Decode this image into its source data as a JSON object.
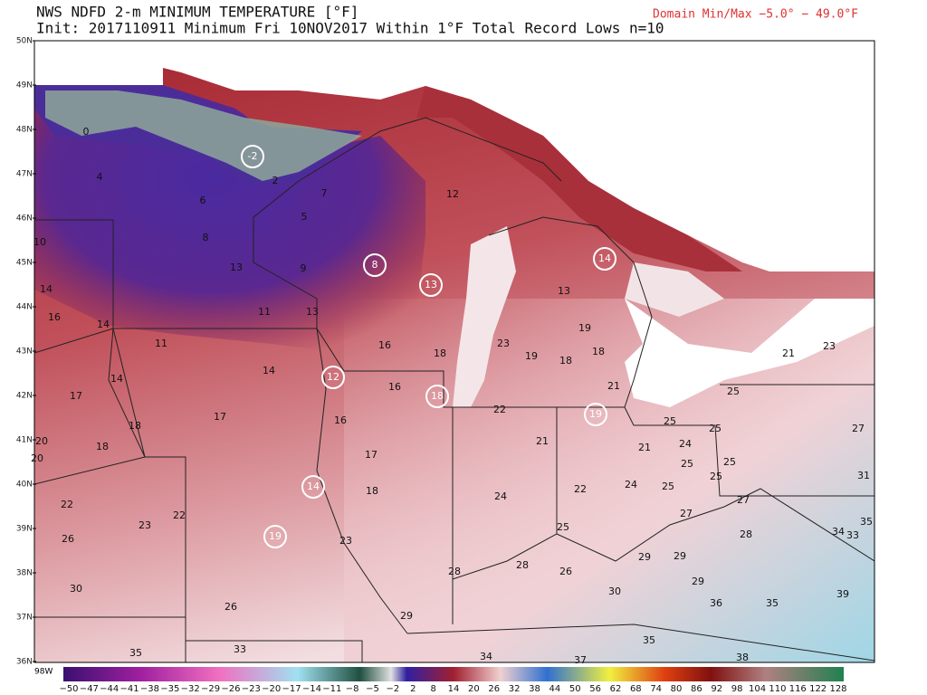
{
  "header": {
    "title": "NWS NDFD 2-m MINIMUM TEMPERATURE [°F]",
    "subtitle": "Init: 2017110911 Minimum Fri 10NOV2017  Within 1°F   Total Record Lows n=10",
    "domain_minmax": "Domain Min/Max −5.0° − 49.0°F"
  },
  "lat_labels": [
    "50N",
    "49N",
    "48N",
    "47N",
    "46N",
    "45N",
    "44N",
    "43N",
    "42N",
    "41N",
    "40N",
    "39N",
    "38N",
    "37N",
    "36N"
  ],
  "lon_label": "98W",
  "colorbar_labels": [
    "−50",
    "−47",
    "−44",
    "−41",
    "−38",
    "−35",
    "−32",
    "−29",
    "−26",
    "−23",
    "−20",
    "−17",
    "−14",
    "−11",
    "−8",
    "−5",
    "−2",
    "2",
    "8",
    "14",
    "20",
    "26",
    "32",
    "38",
    "44",
    "50",
    "56",
    "62",
    "68",
    "74",
    "80",
    "86",
    "92",
    "98",
    "104",
    "110",
    "116",
    "122",
    "128"
  ],
  "stations": [
    {
      "value": 0
    },
    {
      "value": 4
    },
    {
      "value": -2,
      "record": true
    },
    {
      "value": 2
    },
    {
      "value": 7
    },
    {
      "value": 6
    },
    {
      "value": 5
    },
    {
      "value": 12
    },
    {
      "value": 10
    },
    {
      "value": 8
    },
    {
      "value": 13
    },
    {
      "value": 9
    },
    {
      "value": 8,
      "record": true
    },
    {
      "value": 13,
      "record": true
    },
    {
      "value": 14,
      "record": true
    },
    {
      "value": 13
    },
    {
      "value": 14
    },
    {
      "value": 16
    },
    {
      "value": 14
    },
    {
      "value": 11
    },
    {
      "value": 13
    },
    {
      "value": 19
    },
    {
      "value": 11
    },
    {
      "value": 16
    },
    {
      "value": 18
    },
    {
      "value": 23
    },
    {
      "value": 19
    },
    {
      "value": 18
    },
    {
      "value": 18
    },
    {
      "value": 21
    },
    {
      "value": 23
    },
    {
      "value": 14
    },
    {
      "value": 14
    },
    {
      "value": 12,
      "record": true
    },
    {
      "value": 16
    },
    {
      "value": 18,
      "record": true
    },
    {
      "value": 21
    },
    {
      "value": 25
    },
    {
      "value": 17
    },
    {
      "value": 22
    },
    {
      "value": 19,
      "record": true
    },
    {
      "value": 17
    },
    {
      "value": 16
    },
    {
      "value": 25
    },
    {
      "value": 25
    },
    {
      "value": 27
    },
    {
      "value": 18
    },
    {
      "value": 20
    },
    {
      "value": 21
    },
    {
      "value": 21
    },
    {
      "value": 24
    },
    {
      "value": 20
    },
    {
      "value": 18
    },
    {
      "value": 17
    },
    {
      "value": 25
    },
    {
      "value": 25
    },
    {
      "value": 25
    },
    {
      "value": 31
    },
    {
      "value": 14,
      "record": true
    },
    {
      "value": 18
    },
    {
      "value": 22
    },
    {
      "value": 24
    },
    {
      "value": 25
    },
    {
      "value": 24
    },
    {
      "value": 27
    },
    {
      "value": 22
    },
    {
      "value": 22
    },
    {
      "value": 27
    },
    {
      "value": 23
    },
    {
      "value": 25
    },
    {
      "value": 34
    },
    {
      "value": 35
    },
    {
      "value": 33
    },
    {
      "value": 26
    },
    {
      "value": 19,
      "record": true
    },
    {
      "value": 23
    },
    {
      "value": 28
    },
    {
      "value": 29
    },
    {
      "value": 29
    },
    {
      "value": 28
    },
    {
      "value": 28
    },
    {
      "value": 26
    },
    {
      "value": 29
    },
    {
      "value": 30
    },
    {
      "value": 30
    },
    {
      "value": 36
    },
    {
      "value": 35
    },
    {
      "value": 39
    },
    {
      "value": 26
    },
    {
      "value": 29
    },
    {
      "value": 35
    },
    {
      "value": 35
    },
    {
      "value": 33
    },
    {
      "value": 34
    },
    {
      "value": 37
    },
    {
      "value": 38
    }
  ]
}
